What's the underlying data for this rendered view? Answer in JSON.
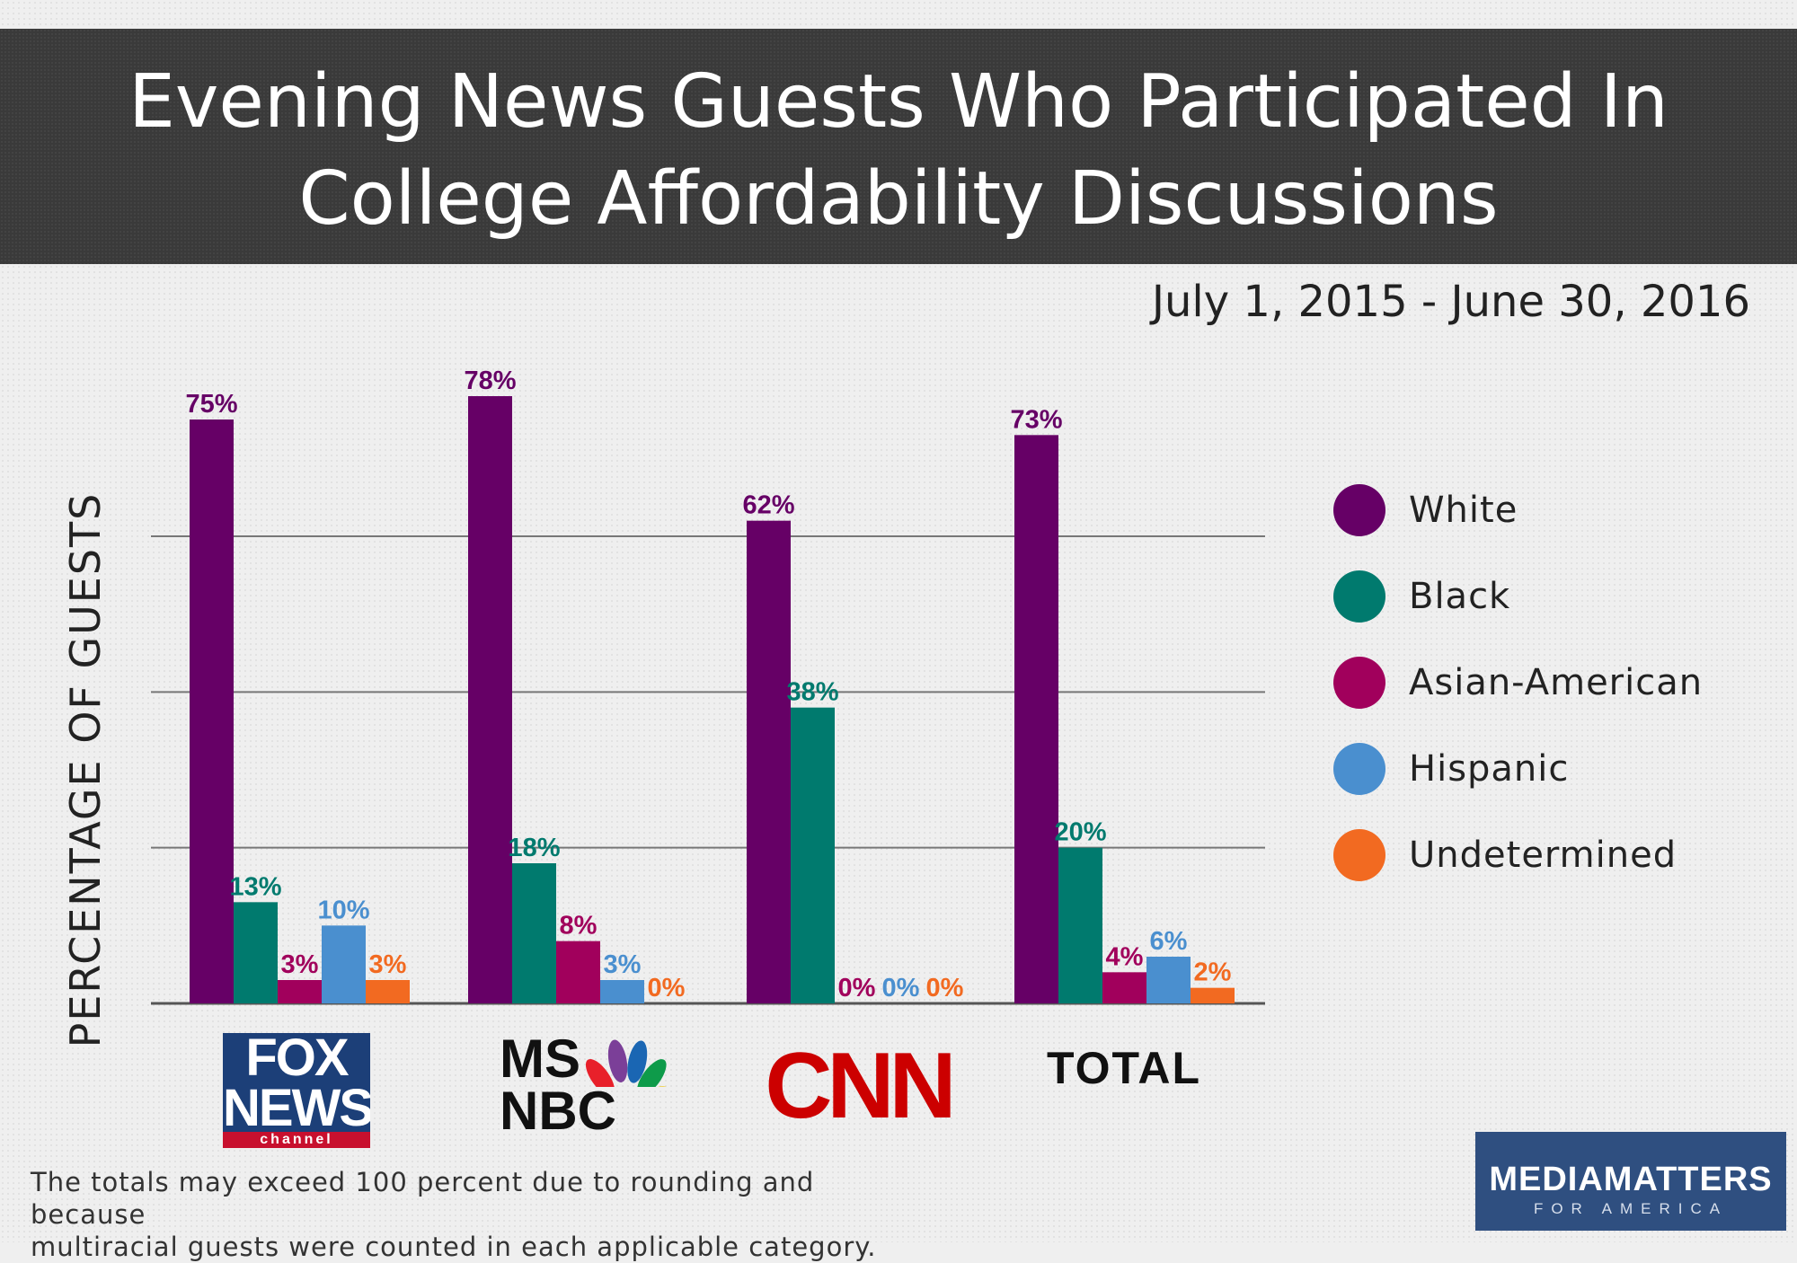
{
  "title_line1": "Evening News Guests Who Participated In",
  "title_line2": "College Affordability Discussions",
  "date_range": "July 1, 2015 - June 30, 2016",
  "footnote_line1": "The totals may exceed 100 percent due to rounding and because",
  "footnote_line2": "multiracial guests were counted in each applicable category.",
  "logos": {
    "fox_line1": "FOX",
    "fox_line2": "NEWS",
    "fox_sub": "channel",
    "msnbc_top": "MS",
    "msnbc_bottom": "NBC",
    "cnn": "CNN",
    "total": "TOTAL"
  },
  "brand": {
    "main": "MEDIAMATTERS",
    "sub": "FOR AMERICA"
  },
  "chart_data": {
    "type": "bar",
    "ylabel": "PERCENTAGE OF GUESTS",
    "categories": [
      "FOX NEWS channel",
      "MSNBC",
      "CNN",
      "TOTAL"
    ],
    "ylim": [
      0,
      90
    ],
    "grid": true,
    "legend_position": "right",
    "series": [
      {
        "name": "White",
        "color": "#660066",
        "values": [
          75,
          78,
          62,
          73
        ]
      },
      {
        "name": "Black",
        "color": "#007a6e",
        "values": [
          13,
          18,
          38,
          20
        ]
      },
      {
        "name": "Asian-American",
        "color": "#a1005c",
        "values": [
          3,
          8,
          0,
          4
        ]
      },
      {
        "name": "Hispanic",
        "color": "#4a8fcf",
        "values": [
          10,
          3,
          0,
          6
        ]
      },
      {
        "name": "Undetermined",
        "color": "#f26a21",
        "values": [
          3,
          0,
          0,
          2
        ]
      }
    ]
  }
}
